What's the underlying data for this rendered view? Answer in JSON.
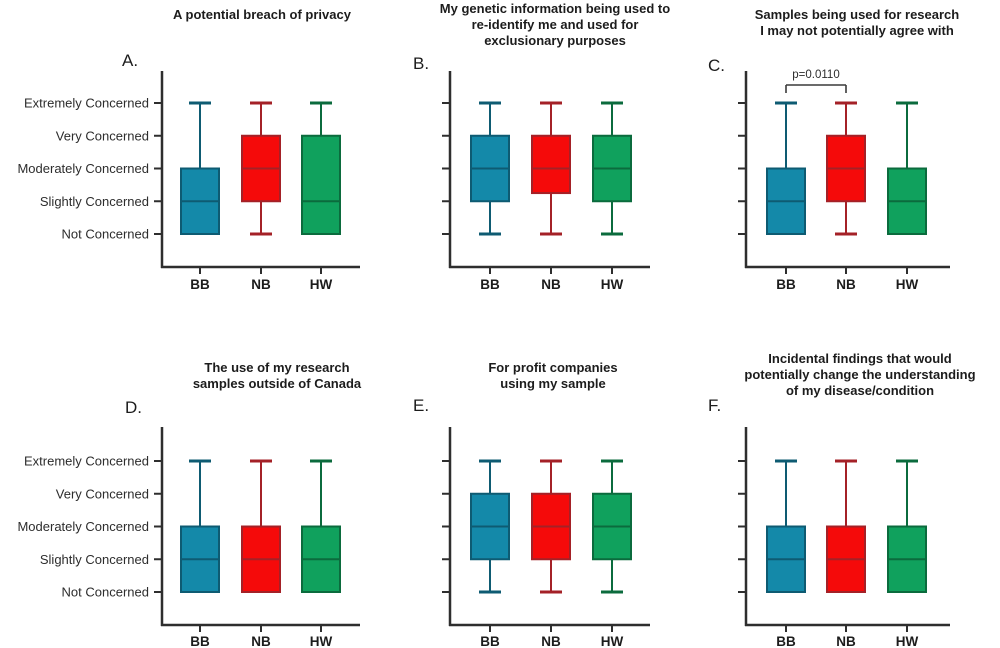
{
  "figure": {
    "background": "#ffffff",
    "axis_color": "#2e2e2e",
    "y_axis_labels": [
      "Extremely Concerned",
      "Very Concerned",
      "Moderately Concerned",
      "Slightly Concerned",
      "Not Concerned"
    ],
    "x_categories": [
      "BB",
      "NB",
      "HW"
    ],
    "scale_values": {
      "Not Concerned": 1,
      "Slightly Concerned": 2,
      "Moderately Concerned": 3,
      "Very Concerned": 4,
      "Extremely Concerned": 5
    },
    "group_colors": {
      "BB": {
        "fill": "#1489A9",
        "stroke": "#0E5B72"
      },
      "NB": {
        "fill": "#F50A0A",
        "stroke": "#A42127"
      },
      "HW": {
        "fill": "#10A15D",
        "stroke": "#0B6B3D"
      }
    }
  },
  "chart_data": [
    {
      "panel": "A",
      "label": "A.",
      "title": "A potential breach of privacy",
      "type": "box",
      "categories": [
        "BB",
        "NB",
        "HW"
      ],
      "ylim": [
        1,
        5
      ],
      "show_y_tick_labels": true,
      "series": [
        {
          "name": "BB",
          "min": 1,
          "q1": 1,
          "median": 2,
          "q3": 3,
          "max": 5
        },
        {
          "name": "NB",
          "min": 1,
          "q1": 2,
          "median": 3,
          "q3": 4,
          "max": 5
        },
        {
          "name": "HW",
          "min": 1,
          "q1": 1,
          "median": 2,
          "q3": 4,
          "max": 5
        }
      ],
      "annotation": null
    },
    {
      "panel": "B",
      "label": "B.",
      "title": "My genetic information being used to\nre-identify me and used for\nexclusionary purposes",
      "type": "box",
      "categories": [
        "BB",
        "NB",
        "HW"
      ],
      "ylim": [
        1,
        5
      ],
      "show_y_tick_labels": false,
      "series": [
        {
          "name": "BB",
          "min": 1,
          "q1": 2,
          "median": 3,
          "q3": 4,
          "max": 5
        },
        {
          "name": "NB",
          "min": 1,
          "q1": 2.25,
          "median": 3,
          "q3": 4,
          "max": 5
        },
        {
          "name": "HW",
          "min": 1,
          "q1": 2,
          "median": 3,
          "q3": 4,
          "max": 5
        }
      ],
      "annotation": null
    },
    {
      "panel": "C",
      "label": "C.",
      "title": "Samples being used for research\nI may not potentially agree with",
      "type": "box",
      "categories": [
        "BB",
        "NB",
        "HW"
      ],
      "ylim": [
        1,
        5
      ],
      "show_y_tick_labels": false,
      "series": [
        {
          "name": "BB",
          "min": 1,
          "q1": 1,
          "median": 2,
          "q3": 3,
          "max": 5
        },
        {
          "name": "NB",
          "min": 1,
          "q1": 2,
          "median": 3,
          "q3": 4,
          "max": 5
        },
        {
          "name": "HW",
          "min": 1,
          "q1": 1,
          "median": 2,
          "q3": 3,
          "max": 5
        }
      ],
      "annotation": {
        "text": "p=0.0110",
        "from": "BB",
        "to": "NB"
      }
    },
    {
      "panel": "D",
      "label": "D.",
      "title": "The use of my research\nsamples outside of Canada",
      "type": "box",
      "categories": [
        "BB",
        "NB",
        "HW"
      ],
      "ylim": [
        1,
        5
      ],
      "show_y_tick_labels": true,
      "series": [
        {
          "name": "BB",
          "min": 1,
          "q1": 1,
          "median": 2,
          "q3": 3,
          "max": 5
        },
        {
          "name": "NB",
          "min": 1,
          "q1": 1,
          "median": 2,
          "q3": 3,
          "max": 5
        },
        {
          "name": "HW",
          "min": 1,
          "q1": 1,
          "median": 2,
          "q3": 3,
          "max": 5
        }
      ],
      "annotation": null
    },
    {
      "panel": "E",
      "label": "E.",
      "title": "For profit companies\nusing my sample",
      "type": "box",
      "categories": [
        "BB",
        "NB",
        "HW"
      ],
      "ylim": [
        1,
        5
      ],
      "show_y_tick_labels": false,
      "series": [
        {
          "name": "BB",
          "min": 1,
          "q1": 2,
          "median": 3,
          "q3": 4,
          "max": 5
        },
        {
          "name": "NB",
          "min": 1,
          "q1": 2,
          "median": 3,
          "q3": 4,
          "max": 5
        },
        {
          "name": "HW",
          "min": 1,
          "q1": 2,
          "median": 3,
          "q3": 4,
          "max": 5
        }
      ],
      "annotation": null
    },
    {
      "panel": "F",
      "label": "F.",
      "title": "Incidental findings that would\npotentially change the understanding\nof my disease/condition",
      "type": "box",
      "categories": [
        "BB",
        "NB",
        "HW"
      ],
      "ylim": [
        1,
        5
      ],
      "show_y_tick_labels": false,
      "series": [
        {
          "name": "BB",
          "min": 1,
          "q1": 1,
          "median": 2,
          "q3": 3,
          "max": 5
        },
        {
          "name": "NB",
          "min": 1,
          "q1": 1,
          "median": 2,
          "q3": 3,
          "max": 5
        },
        {
          "name": "HW",
          "min": 1,
          "q1": 1,
          "median": 2,
          "q3": 3,
          "max": 5
        }
      ],
      "annotation": null
    }
  ]
}
